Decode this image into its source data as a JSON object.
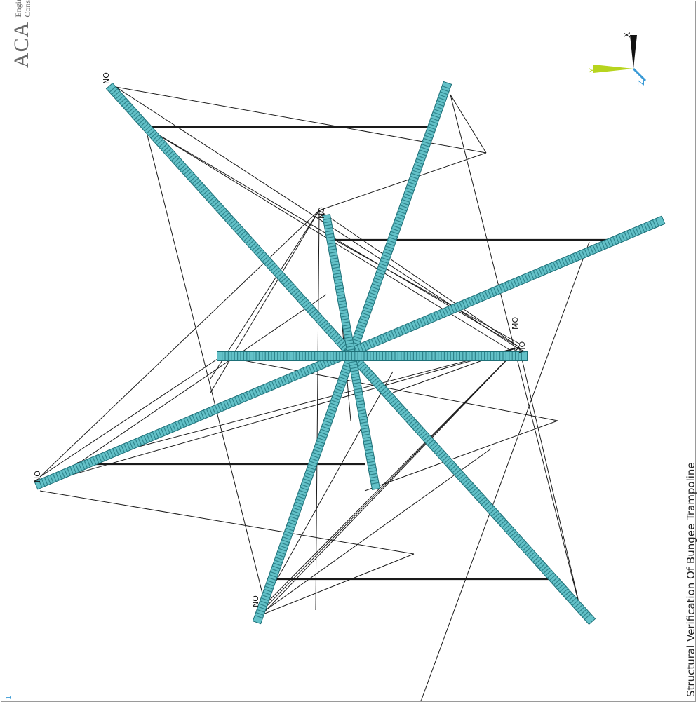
{
  "logo": {
    "name": "ACA",
    "line1": "Engineering",
    "line2": "Consultants"
  },
  "title": "Structural Verification Of Bungee Trampoline",
  "window_number": "1",
  "triad": {
    "x_label": "X",
    "y_label": "Y",
    "z_label": "Z"
  },
  "node_labels": [
    "NO",
    "NO",
    "NO",
    "NO",
    "MO",
    "MO"
  ],
  "colors": {
    "beam_fill": "#63c1c8",
    "beam_edge": "#1d6f77",
    "line": "#1a1a1a",
    "triad_x": "#111111",
    "triad_y": "#b7d41e",
    "triad_z": "#3a9ad6",
    "frame_border": "#9a9a9a",
    "logo_text": "#6a6a6a"
  }
}
